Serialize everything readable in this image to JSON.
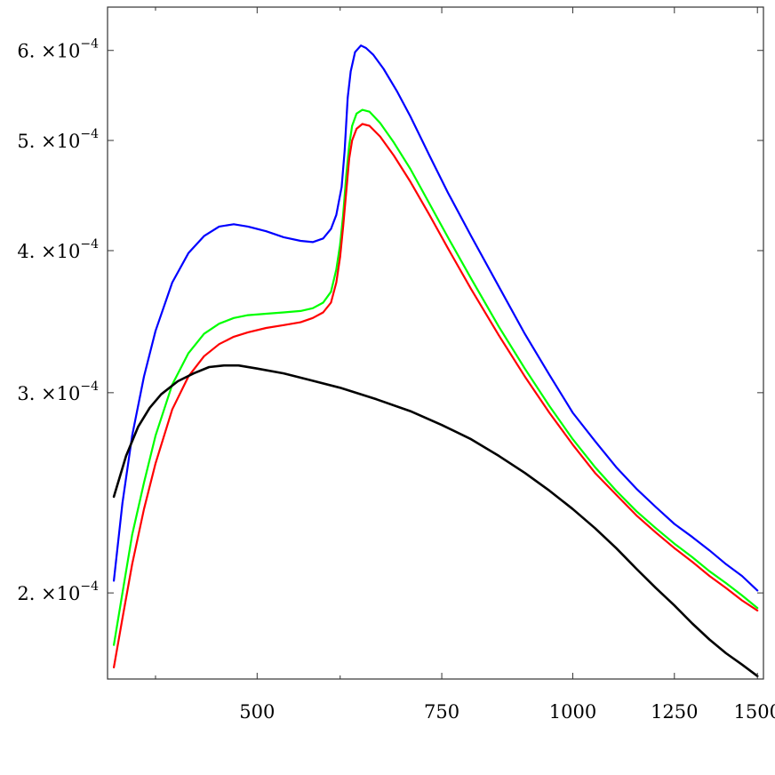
{
  "chart_data": {
    "type": "scatter",
    "title": "",
    "xlabel": "",
    "ylabel": "",
    "x_scale": "log",
    "y_scale": "log",
    "xlim": [
      360,
      1520
    ],
    "ylim": [
      0.000168,
      0.000655
    ],
    "grid": false,
    "legend": "none",
    "x_ticks": [
      {
        "value": 500,
        "label": "500"
      },
      {
        "value": 750,
        "label": "750"
      },
      {
        "value": 1000,
        "label": "1000"
      },
      {
        "value": 1250,
        "label": "1250"
      },
      {
        "value": 1500,
        "label": "1500"
      }
    ],
    "x_minor_ticks": [
      400,
      600
    ],
    "y_ticks": [
      {
        "value": 0.0002,
        "mantissa": "2.",
        "base": "×10",
        "exponent": "−4"
      },
      {
        "value": 0.0003,
        "mantissa": "3.",
        "base": "×10",
        "exponent": "−4"
      },
      {
        "value": 0.0004,
        "mantissa": "4.",
        "base": "×10",
        "exponent": "−4"
      },
      {
        "value": 0.0005,
        "mantissa": "5.",
        "base": "×10",
        "exponent": "−4"
      },
      {
        "value": 0.0006,
        "mantissa": "6.",
        "base": "×10",
        "exponent": "−4"
      }
    ],
    "series": [
      {
        "color": "#0000ff",
        "points": [
          [
            365,
            0.000205
          ],
          [
            372,
            0.00024
          ],
          [
            380,
            0.000275
          ],
          [
            390,
            0.00031
          ],
          [
            400,
            0.00034
          ],
          [
            415,
            0.000375
          ],
          [
            430,
            0.000398
          ],
          [
            445,
            0.000412
          ],
          [
            460,
            0.00042
          ],
          [
            475,
            0.000422
          ],
          [
            490,
            0.00042
          ],
          [
            510,
            0.000416
          ],
          [
            530,
            0.000411
          ],
          [
            550,
            0.000408
          ],
          [
            565,
            0.000407
          ],
          [
            578,
            0.00041
          ],
          [
            588,
            0.000418
          ],
          [
            595,
            0.00043
          ],
          [
            602,
            0.000455
          ],
          [
            606,
            0.00049
          ],
          [
            610,
            0.000545
          ],
          [
            614,
            0.000575
          ],
          [
            620,
            0.000598
          ],
          [
            628,
            0.000606
          ],
          [
            635,
            0.000603
          ],
          [
            645,
            0.000595
          ],
          [
            660,
            0.000578
          ],
          [
            680,
            0.000552
          ],
          [
            700,
            0.000525
          ],
          [
            730,
            0.000485
          ],
          [
            760,
            0.00045
          ],
          [
            800,
            0.000412
          ],
          [
            850,
            0.000372
          ],
          [
            900,
            0.000338
          ],
          [
            950,
            0.000311
          ],
          [
            1000,
            0.000288
          ],
          [
            1050,
            0.000272
          ],
          [
            1100,
            0.000258
          ],
          [
            1150,
            0.000247
          ],
          [
            1200,
            0.000238
          ],
          [
            1250,
            0.00023
          ],
          [
            1300,
            0.000224
          ],
          [
            1350,
            0.000218
          ],
          [
            1400,
            0.000212
          ],
          [
            1450,
            0.000207
          ],
          [
            1500,
            0.000201
          ]
        ]
      },
      {
        "color": "#00ff00",
        "points": [
          [
            365,
            0.00018
          ],
          [
            372,
            0.0002
          ],
          [
            380,
            0.000225
          ],
          [
            390,
            0.00025
          ],
          [
            400,
            0.000275
          ],
          [
            415,
            0.000305
          ],
          [
            430,
            0.000325
          ],
          [
            445,
            0.000338
          ],
          [
            460,
            0.000345
          ],
          [
            475,
            0.000349
          ],
          [
            490,
            0.000351
          ],
          [
            510,
            0.000352
          ],
          [
            530,
            0.000353
          ],
          [
            550,
            0.000354
          ],
          [
            565,
            0.000356
          ],
          [
            578,
            0.00036
          ],
          [
            588,
            0.000368
          ],
          [
            595,
            0.000385
          ],
          [
            600,
            0.000405
          ],
          [
            604,
            0.00043
          ],
          [
            608,
            0.000465
          ],
          [
            612,
            0.000495
          ],
          [
            616,
            0.000515
          ],
          [
            622,
            0.000528
          ],
          [
            630,
            0.000532
          ],
          [
            640,
            0.00053
          ],
          [
            655,
            0.000518
          ],
          [
            675,
            0.000498
          ],
          [
            700,
            0.000472
          ],
          [
            730,
            0.00044
          ],
          [
            760,
            0.000411
          ],
          [
            800,
            0.000378
          ],
          [
            850,
            0.000343
          ],
          [
            900,
            0.000315
          ],
          [
            950,
            0.000292
          ],
          [
            1000,
            0.000273
          ],
          [
            1050,
            0.000258
          ],
          [
            1100,
            0.000246
          ],
          [
            1150,
            0.000236
          ],
          [
            1200,
            0.000228
          ],
          [
            1250,
            0.000221
          ],
          [
            1300,
            0.000215
          ],
          [
            1350,
            0.000209
          ],
          [
            1400,
            0.000204
          ],
          [
            1450,
            0.000199
          ],
          [
            1500,
            0.000194
          ]
        ]
      },
      {
        "color": "#ff0000",
        "points": [
          [
            365,
            0.000172
          ],
          [
            372,
            0.00019
          ],
          [
            380,
            0.000212
          ],
          [
            390,
            0.000237
          ],
          [
            400,
            0.00026
          ],
          [
            415,
            0.00029
          ],
          [
            430,
            0.00031
          ],
          [
            445,
            0.000323
          ],
          [
            460,
            0.000331
          ],
          [
            475,
            0.000336
          ],
          [
            490,
            0.000339
          ],
          [
            510,
            0.000342
          ],
          [
            530,
            0.000344
          ],
          [
            550,
            0.000346
          ],
          [
            565,
            0.000349
          ],
          [
            578,
            0.000353
          ],
          [
            588,
            0.00036
          ],
          [
            595,
            0.000375
          ],
          [
            600,
            0.000395
          ],
          [
            604,
            0.00042
          ],
          [
            608,
            0.00045
          ],
          [
            612,
            0.000482
          ],
          [
            616,
            0.0005
          ],
          [
            622,
            0.000512
          ],
          [
            630,
            0.000517
          ],
          [
            640,
            0.000515
          ],
          [
            655,
            0.000504
          ],
          [
            675,
            0.000485
          ],
          [
            700,
            0.00046
          ],
          [
            730,
            0.00043
          ],
          [
            760,
            0.000402
          ],
          [
            800,
            0.00037
          ],
          [
            850,
            0.000337
          ],
          [
            900,
            0.00031
          ],
          [
            950,
            0.000288
          ],
          [
            1000,
            0.00027
          ],
          [
            1050,
            0.000255
          ],
          [
            1100,
            0.000244
          ],
          [
            1150,
            0.000234
          ],
          [
            1200,
            0.000226
          ],
          [
            1250,
            0.000219
          ],
          [
            1300,
            0.000213
          ],
          [
            1350,
            0.000207
          ],
          [
            1400,
            0.000202
          ],
          [
            1450,
            0.000197
          ],
          [
            1500,
            0.000193
          ]
        ]
      },
      {
        "color": "#000000",
        "points": [
          [
            365,
            0.000243
          ],
          [
            375,
            0.000264
          ],
          [
            385,
            0.00028
          ],
          [
            395,
            0.000291
          ],
          [
            405,
            0.000299
          ],
          [
            420,
            0.000307
          ],
          [
            435,
            0.000312
          ],
          [
            450,
            0.000316
          ],
          [
            465,
            0.000317
          ],
          [
            480,
            0.000317
          ],
          [
            500,
            0.000315
          ],
          [
            530,
            0.000312
          ],
          [
            560,
            0.000308
          ],
          [
            600,
            0.000303
          ],
          [
            650,
            0.000296
          ],
          [
            700,
            0.000289
          ],
          [
            750,
            0.000281
          ],
          [
            800,
            0.000273
          ],
          [
            850,
            0.000264
          ],
          [
            900,
            0.000255
          ],
          [
            950,
            0.000246
          ],
          [
            1000,
            0.000237
          ],
          [
            1050,
            0.000228
          ],
          [
            1100,
            0.000219
          ],
          [
            1150,
            0.00021
          ],
          [
            1200,
            0.000202
          ],
          [
            1250,
            0.000195
          ],
          [
            1300,
            0.000188
          ],
          [
            1350,
            0.000182
          ],
          [
            1400,
            0.000177
          ],
          [
            1450,
            0.000173
          ],
          [
            1500,
            0.000169
          ]
        ]
      }
    ]
  }
}
